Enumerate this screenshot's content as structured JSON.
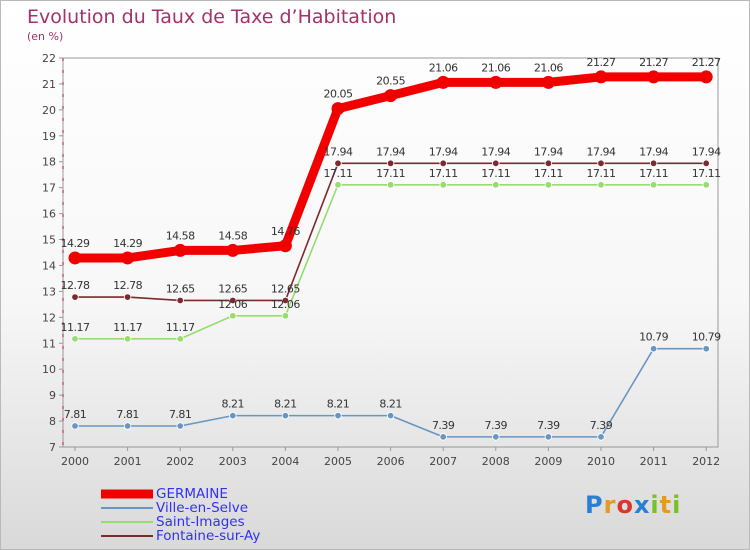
{
  "chart_data": {
    "type": "line",
    "title": "Evolution du Taux de Taxe d’Habitation",
    "subtitle": "(en %)",
    "x": [
      "2000",
      "2001",
      "2002",
      "2003",
      "2004",
      "2005",
      "2006",
      "2007",
      "2008",
      "2009",
      "2010",
      "2011",
      "2012"
    ],
    "ylim": [
      7,
      22
    ],
    "yticks": [
      "7",
      "8",
      "9",
      "10",
      "11",
      "12",
      "13",
      "14",
      "15",
      "16",
      "17",
      "18",
      "19",
      "20",
      "21",
      "22"
    ],
    "grid": false,
    "legend_position": "bottom-left",
    "series": [
      {
        "name": "GERMAINE",
        "color": "#f20000",
        "values": [
          14.29,
          14.29,
          14.58,
          14.58,
          14.76,
          20.05,
          20.55,
          21.06,
          21.06,
          21.06,
          21.27,
          21.27,
          21.27
        ],
        "labels": [
          "14.29",
          "14.29",
          "14.58",
          "14.58",
          "14.76",
          "20.05",
          "20.55",
          "21.06",
          "21.06",
          "21.06",
          "21.27",
          "21.27",
          "21.27"
        ]
      },
      {
        "name": "Ville-en-Selve",
        "color": "#6896c2",
        "values": [
          7.81,
          7.81,
          7.81,
          8.21,
          8.21,
          8.21,
          8.21,
          7.39,
          7.39,
          7.39,
          7.39,
          10.79,
          10.79
        ],
        "labels": [
          "7.81",
          "7.81",
          "7.81",
          "8.21",
          "8.21",
          "8.21",
          "8.21",
          "7.39",
          "7.39",
          "7.39",
          "7.39",
          "10.79",
          "10.79"
        ]
      },
      {
        "name": "Saint-Images",
        "color": "#96dc6e",
        "values": [
          11.17,
          11.17,
          11.17,
          12.06,
          12.06,
          17.11,
          17.11,
          17.11,
          17.11,
          17.11,
          17.11,
          17.11,
          17.11
        ],
        "labels": [
          "11.17",
          "11.17",
          "11.17",
          "12.06",
          "12.06",
          "17.11",
          "17.11",
          "17.11",
          "17.11",
          "17.11",
          "17.11",
          "17.11",
          "17.11"
        ]
      },
      {
        "name": "Fontaine-sur-Ay",
        "color": "#7c2a2e",
        "values": [
          12.78,
          12.78,
          12.65,
          12.65,
          12.65,
          17.94,
          17.94,
          17.94,
          17.94,
          17.94,
          17.94,
          17.94,
          17.94
        ],
        "labels": [
          "12.78",
          "12.78",
          "12.65",
          "12.65",
          "12.65",
          "17.94",
          "17.94",
          "17.94",
          "17.94",
          "17.94",
          "17.94",
          "17.94",
          "17.94"
        ]
      }
    ]
  },
  "logo": {
    "letters": [
      "P",
      "r",
      "o",
      "x",
      "i",
      "t",
      "i"
    ]
  }
}
